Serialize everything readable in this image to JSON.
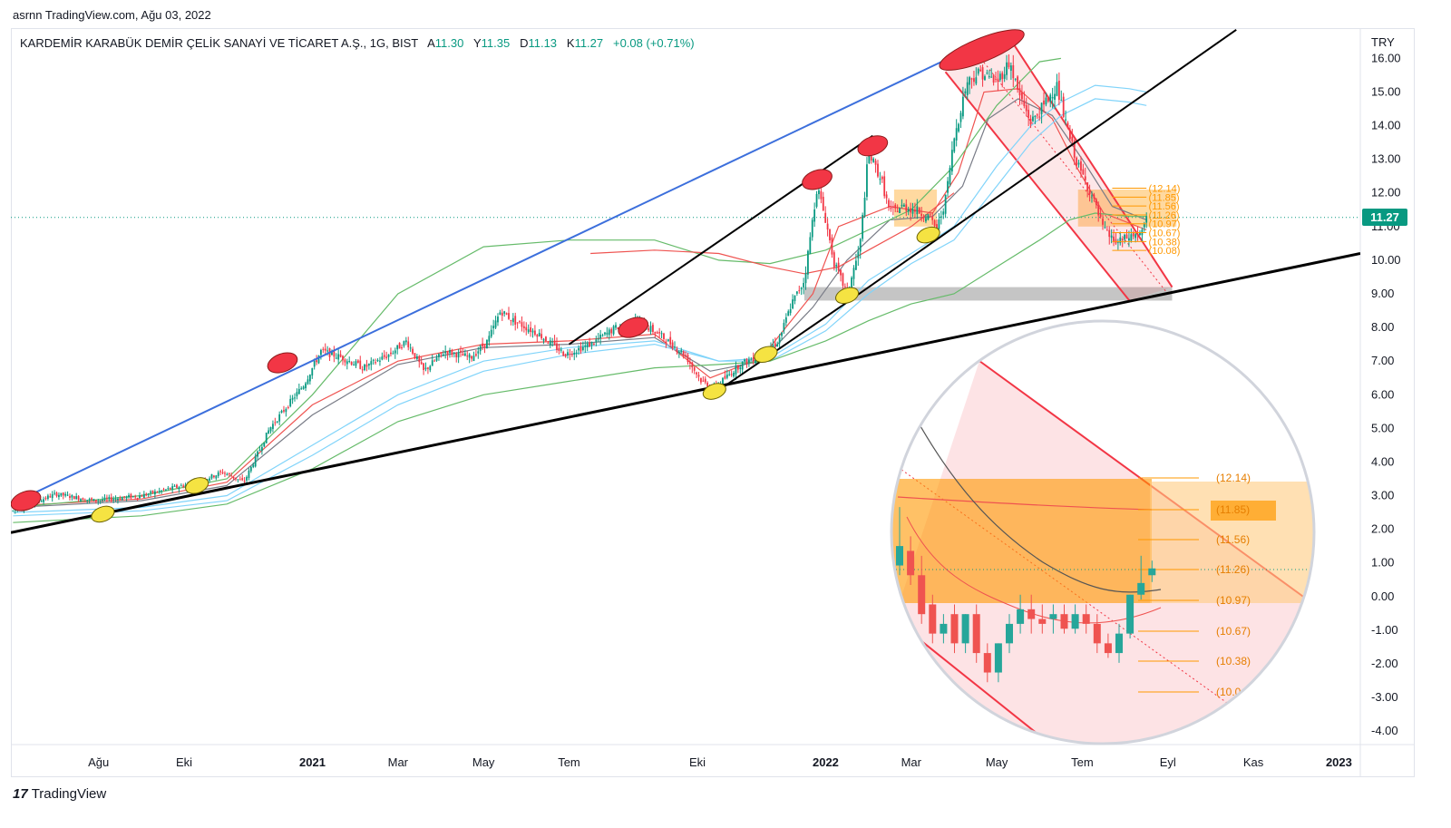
{
  "header": {
    "user": "asrnn",
    "site": "TradingView.com",
    "date": "Ağu 03, 2022",
    "text": "asrnn TradingView.com, Ağu 03, 2022"
  },
  "legend": {
    "symbol": "KARDEMİR KARABÜK DEMİR ÇELİK SANAYİ VE TİCARET A.Ş., 1G, BIST",
    "open_label": "A",
    "open": "11.30",
    "high_label": "Y",
    "high": "11.35",
    "low_label": "D",
    "low": "11.13",
    "close_label": "K",
    "close": "11.27",
    "change": "+0.08 (+0.71%)"
  },
  "currency": "TRY",
  "last_price": "11.27",
  "brand": "TradingView",
  "colors": {
    "up": "#089981",
    "down": "#f23645",
    "trend_blue": "#3c6fdc",
    "channel_red": "#f23645",
    "fib_orange": "#ff9800",
    "ma_green": "#66bb6a",
    "ma_light_blue": "#81d4fa",
    "ma_red": "#ef5350",
    "ma_gray": "#787b86"
  },
  "chart_data": {
    "type": "candlestick",
    "y_axis": {
      "ticks": [
        "16.00",
        "15.00",
        "14.00",
        "13.00",
        "12.00",
        "11.00",
        "10.00",
        "9.00",
        "8.00",
        "7.00",
        "6.00",
        "5.00",
        "4.00",
        "3.00",
        "2.00",
        "1.00",
        "0.00",
        "-1.00",
        "-2.00",
        "-3.00",
        "-4.00"
      ],
      "ylim": [
        -4.4,
        16.9
      ]
    },
    "x_axis": {
      "ticks": [
        {
          "label": "Ağu",
          "t": 0.5,
          "bold": false
        },
        {
          "label": "Eki",
          "t": 2.5,
          "bold": false
        },
        {
          "label": "2021",
          "t": 5.5,
          "bold": true
        },
        {
          "label": "Mar",
          "t": 7.5,
          "bold": false
        },
        {
          "label": "May",
          "t": 9.5,
          "bold": false
        },
        {
          "label": "Tem",
          "t": 11.5,
          "bold": false
        },
        {
          "label": "Eki",
          "t": 14.5,
          "bold": false
        },
        {
          "label": "2022",
          "t": 17.5,
          "bold": true
        },
        {
          "label": "Mar",
          "t": 19.5,
          "bold": false
        },
        {
          "label": "May",
          "t": 21.5,
          "bold": false
        },
        {
          "label": "Tem",
          "t": 23.5,
          "bold": false
        },
        {
          "label": "Eyl",
          "t": 25.5,
          "bold": false
        },
        {
          "label": "Kas",
          "t": 27.5,
          "bold": false
        },
        {
          "label": "2023",
          "t": 29.5,
          "bold": true
        }
      ],
      "xlim": [
        -1.55,
        30.0
      ]
    },
    "price_path": [
      [
        -1.5,
        2.55
      ],
      [
        -0.5,
        3.05
      ],
      [
        0.4,
        2.85
      ],
      [
        1.5,
        3.0
      ],
      [
        2.8,
        3.4
      ],
      [
        3.4,
        3.7
      ],
      [
        3.9,
        3.4
      ],
      [
        4.5,
        5.0
      ],
      [
        5.3,
        6.3
      ],
      [
        5.7,
        7.3
      ],
      [
        6.2,
        7.1
      ],
      [
        6.7,
        6.8
      ],
      [
        7.3,
        7.2
      ],
      [
        7.7,
        7.6
      ],
      [
        8.1,
        6.7
      ],
      [
        8.6,
        7.3
      ],
      [
        9.2,
        7.1
      ],
      [
        9.6,
        7.6
      ],
      [
        9.9,
        8.5
      ],
      [
        10.2,
        8.2
      ],
      [
        10.8,
        7.8
      ],
      [
        11.4,
        7.2
      ],
      [
        12.0,
        7.5
      ],
      [
        12.6,
        8.0
      ],
      [
        13.1,
        8.2
      ],
      [
        13.6,
        7.8
      ],
      [
        14.2,
        7.2
      ],
      [
        14.6,
        6.4
      ],
      [
        14.9,
        6.2
      ],
      [
        15.5,
        6.9
      ],
      [
        16.0,
        7.2
      ],
      [
        16.4,
        7.6
      ],
      [
        16.7,
        8.7
      ],
      [
        17.0,
        9.4
      ],
      [
        17.3,
        12.2
      ],
      [
        17.5,
        11.2
      ],
      [
        17.7,
        9.9
      ],
      [
        18.0,
        9.0
      ],
      [
        18.3,
        10.4
      ],
      [
        18.5,
        13.2
      ],
      [
        18.8,
        12.4
      ],
      [
        19.0,
        11.4
      ],
      [
        19.3,
        11.6
      ],
      [
        19.6,
        11.5
      ],
      [
        19.9,
        11.3
      ],
      [
        20.1,
        10.9
      ],
      [
        20.3,
        11.8
      ],
      [
        20.5,
        13.6
      ],
      [
        20.8,
        15.3
      ],
      [
        21.1,
        15.6
      ],
      [
        21.5,
        15.3
      ],
      [
        21.8,
        15.9
      ],
      [
        22.0,
        15.0
      ],
      [
        22.3,
        14.1
      ],
      [
        22.6,
        14.6
      ],
      [
        22.9,
        15.2
      ],
      [
        23.1,
        14.1
      ],
      [
        23.4,
        12.8
      ],
      [
        23.7,
        12.0
      ],
      [
        24.0,
        10.9
      ],
      [
        24.3,
        10.5
      ],
      [
        24.6,
        10.7
      ],
      [
        24.9,
        10.8
      ],
      [
        25.0,
        11.27
      ]
    ],
    "moving_averages": [
      {
        "color": "#ef5350",
        "points": [
          [
            -1.5,
            2.7
          ],
          [
            1.5,
            2.9
          ],
          [
            3.5,
            3.4
          ],
          [
            5.5,
            5.7
          ],
          [
            7.5,
            7.0
          ],
          [
            9.5,
            7.5
          ],
          [
            11.5,
            7.6
          ],
          [
            13.5,
            7.8
          ],
          [
            14.8,
            6.5
          ],
          [
            16.0,
            7.1
          ],
          [
            17.2,
            9.0
          ],
          [
            17.8,
            11.0
          ],
          [
            18.4,
            11.3
          ],
          [
            19.0,
            11.6
          ],
          [
            20.0,
            11.4
          ],
          [
            20.6,
            12.6
          ],
          [
            21.2,
            15.0
          ],
          [
            22.0,
            15.1
          ],
          [
            22.8,
            14.2
          ],
          [
            23.4,
            12.7
          ],
          [
            24.0,
            11.4
          ],
          [
            25.0,
            10.9
          ]
        ]
      },
      {
        "color": "#787b86",
        "points": [
          [
            -1.5,
            2.65
          ],
          [
            1.5,
            2.85
          ],
          [
            3.5,
            3.3
          ],
          [
            5.5,
            5.4
          ],
          [
            7.5,
            6.9
          ],
          [
            9.5,
            7.4
          ],
          [
            11.5,
            7.5
          ],
          [
            13.5,
            7.7
          ],
          [
            14.8,
            6.7
          ],
          [
            16.0,
            7.0
          ],
          [
            17.2,
            8.6
          ],
          [
            18.0,
            10.0
          ],
          [
            19.0,
            11.2
          ],
          [
            20.0,
            11.3
          ],
          [
            20.7,
            12.2
          ],
          [
            21.3,
            14.2
          ],
          [
            22.0,
            14.8
          ],
          [
            22.8,
            14.3
          ],
          [
            23.5,
            13.0
          ],
          [
            24.2,
            11.6
          ],
          [
            25.0,
            11.2
          ]
        ]
      },
      {
        "color": "#81d4fa",
        "points": [
          [
            -1.5,
            2.5
          ],
          [
            1.5,
            2.65
          ],
          [
            3.5,
            3.0
          ],
          [
            5.5,
            4.5
          ],
          [
            7.5,
            6.0
          ],
          [
            9.5,
            7.0
          ],
          [
            11.5,
            7.4
          ],
          [
            13.5,
            7.6
          ],
          [
            15.0,
            7.0
          ],
          [
            16.2,
            7.1
          ],
          [
            17.5,
            8.1
          ],
          [
            18.5,
            9.4
          ],
          [
            19.5,
            10.2
          ],
          [
            20.5,
            11.0
          ],
          [
            21.5,
            12.8
          ],
          [
            22.3,
            14.0
          ],
          [
            23.0,
            14.7
          ],
          [
            23.8,
            15.2
          ],
          [
            24.6,
            15.1
          ],
          [
            25.0,
            15.0
          ]
        ]
      },
      {
        "color": "#81d4fa",
        "points": [
          [
            -1.5,
            2.4
          ],
          [
            1.5,
            2.55
          ],
          [
            3.5,
            2.85
          ],
          [
            5.5,
            4.2
          ],
          [
            7.5,
            5.7
          ],
          [
            9.5,
            6.7
          ],
          [
            11.5,
            7.2
          ],
          [
            13.5,
            7.5
          ],
          [
            15.0,
            7.0
          ],
          [
            16.2,
            7.0
          ],
          [
            17.5,
            7.9
          ],
          [
            18.5,
            9.0
          ],
          [
            19.5,
            9.9
          ],
          [
            20.5,
            10.6
          ],
          [
            21.5,
            12.2
          ],
          [
            22.3,
            13.5
          ],
          [
            23.0,
            14.3
          ],
          [
            23.8,
            14.8
          ],
          [
            24.6,
            14.7
          ],
          [
            25.0,
            14.6
          ]
        ]
      },
      {
        "color": "#66bb6a",
        "points": [
          [
            -1.5,
            2.2
          ],
          [
            1.5,
            2.4
          ],
          [
            3.5,
            2.75
          ],
          [
            5.5,
            3.8
          ],
          [
            7.5,
            5.2
          ],
          [
            9.5,
            6.0
          ],
          [
            11.5,
            6.4
          ],
          [
            13.5,
            6.8
          ],
          [
            15.0,
            6.9
          ],
          [
            16.2,
            7.0
          ],
          [
            17.5,
            7.6
          ],
          [
            18.5,
            8.2
          ],
          [
            19.5,
            8.7
          ],
          [
            20.5,
            9.0
          ],
          [
            21.5,
            9.8
          ],
          [
            22.5,
            10.6
          ],
          [
            23.2,
            11.2
          ],
          [
            23.8,
            11.4
          ],
          [
            24.6,
            11.3
          ],
          [
            25.0,
            11.3
          ]
        ]
      },
      {
        "color": "#66bb6a",
        "points": [
          [
            -1.5,
            2.65
          ],
          [
            1.5,
            3.0
          ],
          [
            3.5,
            3.5
          ],
          [
            5.5,
            6.0
          ],
          [
            7.5,
            9.0
          ],
          [
            9.5,
            10.4
          ],
          [
            11.5,
            10.6
          ],
          [
            13.5,
            10.6
          ],
          [
            15.0,
            10.0
          ],
          [
            16.2,
            9.9
          ],
          [
            17.5,
            10.3
          ],
          [
            18.5,
            10.9
          ],
          [
            19.5,
            11.5
          ],
          [
            20.5,
            12.8
          ],
          [
            21.5,
            14.6
          ],
          [
            22.5,
            15.9
          ],
          [
            23.0,
            16.0
          ]
        ]
      },
      {
        "color": "#ef5350",
        "points": [
          [
            12.0,
            10.2
          ],
          [
            13.5,
            10.3
          ],
          [
            15.0,
            10.2
          ],
          [
            16.2,
            9.8
          ],
          [
            17.0,
            9.6
          ],
          [
            17.8,
            9.8
          ],
          [
            18.5,
            10.3
          ],
          [
            19.5,
            11.0
          ],
          [
            20.5,
            12.0
          ]
        ]
      }
    ],
    "trend_lines": [
      {
        "name": "long-term support",
        "color": "#000000",
        "from": [
          -1.55,
          1.9
        ],
        "to": [
          30.0,
          10.2
        ]
      },
      {
        "name": "long-term resistance",
        "color": "#3c6fdc",
        "from": [
          -1.55,
          2.75
        ],
        "to": [
          21.7,
          16.8
        ]
      },
      {
        "name": "channel 1 upper",
        "color": "#000000",
        "from": [
          11.5,
          7.5
        ],
        "to": [
          18.6,
          13.7
        ]
      },
      {
        "name": "channel 1 lower",
        "color": "#000000",
        "from": [
          14.9,
          6.05
        ],
        "to": [
          18.0,
          8.75
        ]
      },
      {
        "name": "channel 2",
        "color": "#000000",
        "from": [
          18.0,
          8.75
        ],
        "to": [
          27.1,
          16.85
        ]
      }
    ],
    "down_channel": {
      "upper": [
        [
          21.7,
          16.8
        ],
        [
          25.6,
          9.2
        ]
      ],
      "lower": [
        [
          20.3,
          15.6
        ],
        [
          24.6,
          8.8
        ]
      ]
    },
    "zones": [
      {
        "color": "#ffcc80",
        "t": [
          19.1,
          20.1
        ],
        "y": [
          11.0,
          12.1
        ]
      },
      {
        "color": "#ffcc80",
        "t": [
          23.4,
          25.7
        ],
        "y": [
          11.0,
          12.1
        ]
      },
      {
        "color": "#9e9e9e",
        "t": [
          17.0,
          25.6
        ],
        "y": [
          8.8,
          9.2
        ]
      }
    ],
    "fib_levels": [
      {
        "label": "(12.14)",
        "value": 12.14
      },
      {
        "label": "(11.85)",
        "value": 11.85
      },
      {
        "label": "(11.56)",
        "value": 11.56
      },
      {
        "label": "(11.26)",
        "value": 11.26
      },
      {
        "label": "(10.97)",
        "value": 10.97
      },
      {
        "label": "(10.67)",
        "value": 10.67
      },
      {
        "label": "(10.38)",
        "value": 10.38
      },
      {
        "label": "(10.08)",
        "value": 10.08
      }
    ],
    "highs_marked": [
      [
        -1.2,
        2.85
      ],
      [
        4.8,
        6.95
      ],
      [
        13.0,
        8.0
      ],
      [
        17.3,
        12.4
      ],
      [
        18.6,
        13.4
      ],
      [
        21.5,
        16.4
      ]
    ],
    "lows_marked": [
      [
        0.6,
        2.45
      ],
      [
        2.8,
        3.3
      ],
      [
        14.9,
        6.1
      ],
      [
        16.1,
        7.2
      ],
      [
        18.0,
        8.95
      ],
      [
        19.9,
        10.75
      ]
    ],
    "inset": {
      "description_visible": false,
      "fib_labels": [
        "(12.14)",
        "(11.85)",
        "(11.56)",
        "(11.26)",
        "(10.97)",
        "(10.67)",
        "(10.38)",
        "(10.0"
      ],
      "candles": [
        {
          "o": 11.3,
          "c": 11.5,
          "h": 11.9,
          "l": 11.2
        },
        {
          "o": 11.45,
          "c": 11.2,
          "h": 11.6,
          "l": 11.1
        },
        {
          "o": 11.2,
          "c": 10.8,
          "h": 11.4,
          "l": 10.7
        },
        {
          "o": 10.9,
          "c": 10.6,
          "h": 11.0,
          "l": 10.5
        },
        {
          "o": 10.6,
          "c": 10.7,
          "h": 10.8,
          "l": 10.5
        },
        {
          "o": 10.8,
          "c": 10.5,
          "h": 10.9,
          "l": 10.4
        },
        {
          "o": 10.5,
          "c": 10.8,
          "h": 10.8,
          "l": 10.4
        },
        {
          "o": 10.8,
          "c": 10.4,
          "h": 10.9,
          "l": 10.3
        },
        {
          "o": 10.4,
          "c": 10.2,
          "h": 10.5,
          "l": 10.1
        },
        {
          "o": 10.2,
          "c": 10.5,
          "h": 10.5,
          "l": 10.1
        },
        {
          "o": 10.5,
          "c": 10.7,
          "h": 10.8,
          "l": 10.4
        },
        {
          "o": 10.7,
          "c": 10.85,
          "h": 11.0,
          "l": 10.6
        },
        {
          "o": 10.85,
          "c": 10.75,
          "h": 11.0,
          "l": 10.6
        },
        {
          "o": 10.75,
          "c": 10.7,
          "h": 10.9,
          "l": 10.6
        },
        {
          "o": 10.75,
          "c": 10.8,
          "h": 10.9,
          "l": 10.6
        },
        {
          "o": 10.8,
          "c": 10.65,
          "h": 10.9,
          "l": 10.6
        },
        {
          "o": 10.65,
          "c": 10.8,
          "h": 10.9,
          "l": 10.6
        },
        {
          "o": 10.8,
          "c": 10.7,
          "h": 10.9,
          "l": 10.6
        },
        {
          "o": 10.7,
          "c": 10.5,
          "h": 10.8,
          "l": 10.4
        },
        {
          "o": 10.5,
          "c": 10.4,
          "h": 10.6,
          "l": 10.35
        },
        {
          "o": 10.4,
          "c": 10.6,
          "h": 10.7,
          "l": 10.3
        },
        {
          "o": 10.6,
          "c": 11.0,
          "h": 11.0,
          "l": 10.55
        },
        {
          "o": 11.0,
          "c": 11.12,
          "h": 11.4,
          "l": 10.95
        },
        {
          "o": 11.2,
          "c": 11.27,
          "h": 11.35,
          "l": 11.13
        }
      ]
    }
  }
}
